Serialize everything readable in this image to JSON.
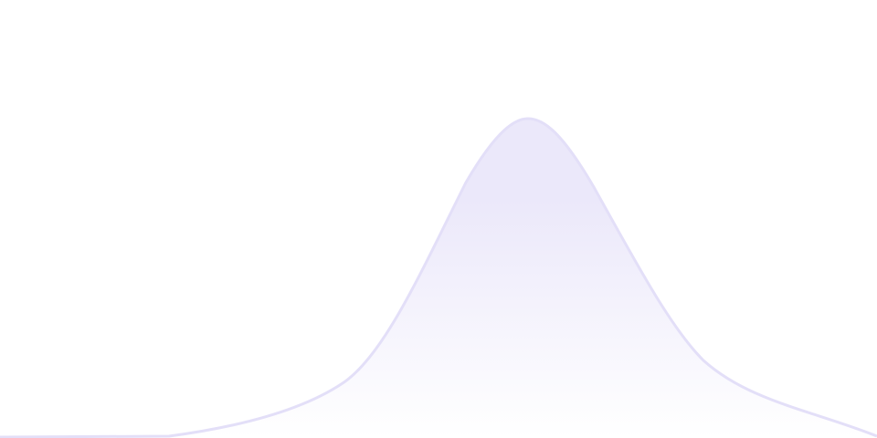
{
  "decoration": {
    "stroke_color": "#e3dff8",
    "fill_top_color": "#ebe8fa",
    "fill_bottom_color": "#ffffff"
  }
}
